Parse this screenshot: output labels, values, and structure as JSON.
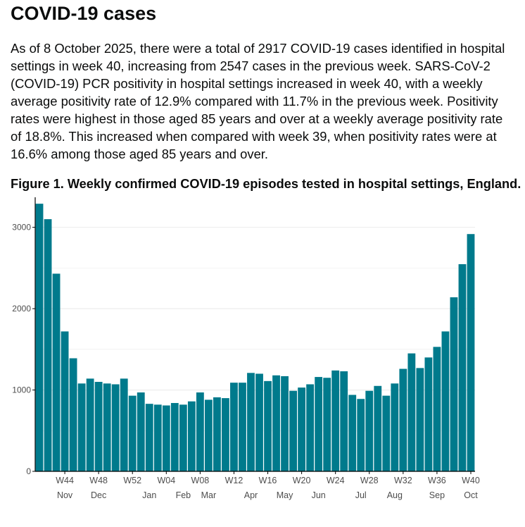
{
  "page": {
    "heading": "COVID-19 cases",
    "paragraph": "As of 8 October 2025, there were a total of 2917 COVID-19 cases identified in hospital settings in week 40, increasing from 2547 cases in the previous week. SARS-CoV-2 (COVID-19) PCR positivity in hospital settings increased in week 40, with a weekly average positivity rate of 12.9% compared with 11.7% in the previous week. Positivity rates were highest in those aged 85 years and over at a weekly average positivity rate of 18.8%. This increased when compared with week 39, when positivity rates were at 16.6% among those aged 85 years and over.",
    "figure_title": "Figure 1. Weekly confirmed COVID-19 episodes tested in hospital settings, England."
  },
  "colors": {
    "bar": "#007a8c",
    "grid": "#ebebeb",
    "axis": "#000000",
    "text": "#4d4d4d"
  },
  "chart_data": {
    "type": "bar",
    "title": "",
    "xlabel": "",
    "ylabel": "",
    "ylim": [
      0,
      3300
    ],
    "y_ticks": [
      0,
      1000,
      2000,
      3000
    ],
    "grid": true,
    "weeks": [
      "W41",
      "W42",
      "W43",
      "W44",
      "W45",
      "W46",
      "W47",
      "W48",
      "W49",
      "W50",
      "W51",
      "W52",
      "W01",
      "W02",
      "W03",
      "W04",
      "W05",
      "W06",
      "W07",
      "W08",
      "W09",
      "W10",
      "W11",
      "W12",
      "W13",
      "W14",
      "W15",
      "W16",
      "W17",
      "W18",
      "W19",
      "W20",
      "W21",
      "W22",
      "W23",
      "W24",
      "W25",
      "W26",
      "W27",
      "W28",
      "W29",
      "W30",
      "W31",
      "W32",
      "W33",
      "W34",
      "W35",
      "W36",
      "W37",
      "W38",
      "W39",
      "W40"
    ],
    "values": [
      3290,
      3100,
      2430,
      1720,
      1390,
      1080,
      1140,
      1100,
      1080,
      1070,
      1140,
      930,
      970,
      830,
      820,
      810,
      840,
      820,
      860,
      970,
      880,
      910,
      900,
      1090,
      1090,
      1210,
      1200,
      1110,
      1180,
      1170,
      990,
      1030,
      1070,
      1160,
      1150,
      1240,
      1230,
      940,
      890,
      990,
      1050,
      930,
      1080,
      1260,
      1450,
      1270,
      1400,
      1530,
      1720,
      2140,
      2547,
      2917
    ],
    "week_tick_labels": [
      "W44",
      "W48",
      "W52",
      "W04",
      "W08",
      "W12",
      "W16",
      "W20",
      "W24",
      "W28",
      "W32",
      "W36",
      "W40"
    ],
    "month_labels": [
      "Nov",
      "Dec",
      "Jan",
      "Feb",
      "Mar",
      "Apr",
      "May",
      "Jun",
      "Jul",
      "Aug",
      "Sep",
      "Oct"
    ]
  }
}
